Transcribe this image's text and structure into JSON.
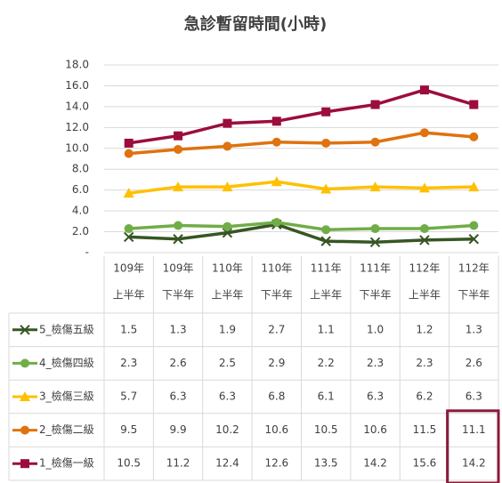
{
  "chart_data": {
    "type": "line",
    "title": "急診暫留時間(小時)",
    "categories": [
      [
        "109年",
        "上半年"
      ],
      [
        "109年",
        "下半年"
      ],
      [
        "110年",
        "上半年"
      ],
      [
        "110年",
        "下半年"
      ],
      [
        "111年",
        "上半年"
      ],
      [
        "111年",
        "下半年"
      ],
      [
        "112年",
        "上半年"
      ],
      [
        "112年",
        "下半年"
      ]
    ],
    "ylim": [
      0,
      18
    ],
    "yticks": [
      {
        "value": 0,
        "label": "-"
      },
      {
        "value": 2,
        "label": "2.0"
      },
      {
        "value": 4,
        "label": "4.0"
      },
      {
        "value": 6,
        "label": "6.0"
      },
      {
        "value": 8,
        "label": "8.0"
      },
      {
        "value": 10,
        "label": "10.0"
      },
      {
        "value": 12,
        "label": "12.0"
      },
      {
        "value": 14,
        "label": "14.0"
      },
      {
        "value": 16,
        "label": "16.0"
      },
      {
        "value": 18,
        "label": "18.0"
      }
    ],
    "grid": true,
    "series": [
      {
        "name": "5_檢傷五級",
        "color": "#375623",
        "marker": "x",
        "values": [
          1.5,
          1.3,
          1.9,
          2.7,
          1.1,
          1.0,
          1.2,
          1.3
        ],
        "value_labels": [
          "1.5",
          "1.3",
          "1.9",
          "2.7",
          "1.1",
          "1.0",
          "1.2",
          "1.3"
        ]
      },
      {
        "name": "4_檢傷四級",
        "color": "#70ad47",
        "marker": "circle",
        "values": [
          2.3,
          2.6,
          2.5,
          2.9,
          2.2,
          2.3,
          2.3,
          2.6
        ],
        "value_labels": [
          "2.3",
          "2.6",
          "2.5",
          "2.9",
          "2.2",
          "2.3",
          "2.3",
          "2.6"
        ]
      },
      {
        "name": "3_檢傷三級",
        "color": "#ffc000",
        "marker": "triangle",
        "values": [
          5.7,
          6.3,
          6.3,
          6.8,
          6.1,
          6.3,
          6.2,
          6.3
        ],
        "value_labels": [
          "5.7",
          "6.3",
          "6.3",
          "6.8",
          "6.1",
          "6.3",
          "6.2",
          "6.3"
        ]
      },
      {
        "name": "2_檢傷二級",
        "color": "#e0720f",
        "marker": "circle",
        "values": [
          9.5,
          9.9,
          10.2,
          10.6,
          10.5,
          10.6,
          11.5,
          11.1
        ],
        "value_labels": [
          "9.5",
          "9.9",
          "10.2",
          "10.6",
          "10.5",
          "10.6",
          "11.5",
          "11.1"
        ]
      },
      {
        "name": "1_檢傷一級",
        "color": "#9c0d3c",
        "marker": "square",
        "values": [
          10.5,
          11.2,
          12.4,
          12.6,
          13.5,
          14.2,
          15.6,
          14.2
        ],
        "value_labels": [
          "10.5",
          "11.2",
          "12.4",
          "12.6",
          "13.5",
          "14.2",
          "15.6",
          "14.2"
        ]
      }
    ]
  }
}
